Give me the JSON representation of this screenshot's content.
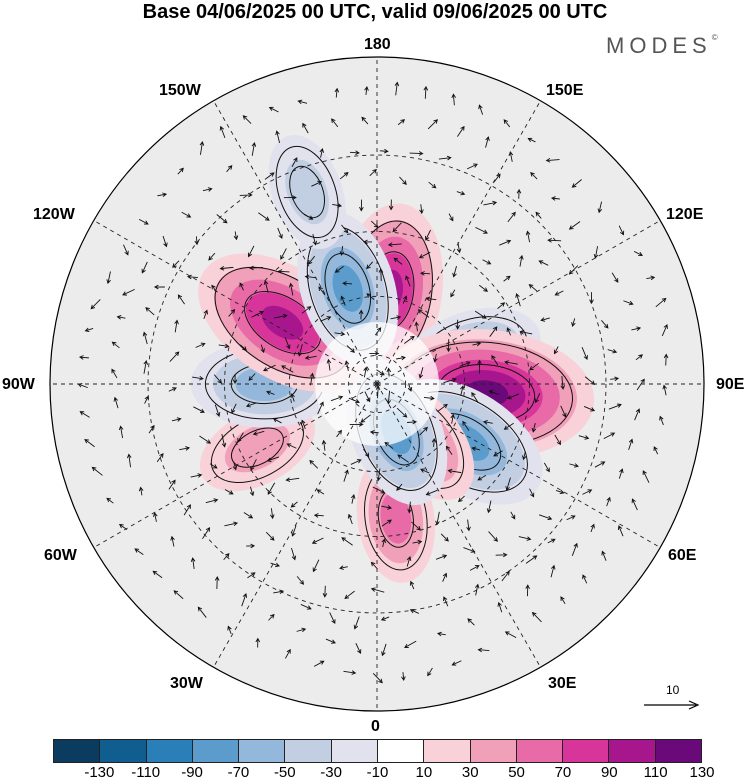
{
  "title": "Base 04/06/2025 00 UTC, valid 09/06/2025 00 UTC",
  "brand": "MODES",
  "brand_mark": "©",
  "longitude_labels": {
    "l180": "180",
    "l150e": "150E",
    "l120e": "120E",
    "l90e": "90E",
    "l60e": "60E",
    "l30e": "30E",
    "l0": "0",
    "l30w": "30W",
    "l60w": "60W",
    "l90w": "90W",
    "l120w": "120W",
    "l150w": "150W"
  },
  "colorbar": {
    "ticks": [
      "-130",
      "-110",
      "-90",
      "-70",
      "-50",
      "-30",
      "-10",
      "10",
      "30",
      "50",
      "70",
      "90",
      "110",
      "130"
    ],
    "colors": [
      "#0b3b5e",
      "#0f5e8f",
      "#2b7fb8",
      "#5b9ccc",
      "#93b8db",
      "#c2cfe3",
      "#e2e2ee",
      "#ffffff",
      "#f8d2d8",
      "#f0a0b8",
      "#e86aa6",
      "#d8359a",
      "#a8168e",
      "#6a0a7a"
    ]
  },
  "reference_vector": {
    "value": "10"
  },
  "map": {
    "projection": "north-polar-stereographic",
    "background_color": "#ececec",
    "anomalies": [
      {
        "lon": 172,
        "lat": 58,
        "level": 80
      },
      {
        "lon": 108,
        "lat": 56,
        "level": -50
      },
      {
        "lon": 85,
        "lat": 53,
        "level": 115
      },
      {
        "lon": 57,
        "lat": 54,
        "level": -75
      },
      {
        "lon": 38,
        "lat": 65,
        "level": 45
      },
      {
        "lon": 8,
        "lat": 45,
        "level": 40
      },
      {
        "lon": 22,
        "lat": 72,
        "level": -60
      },
      {
        "lon": -62,
        "lat": 45,
        "level": 35
      },
      {
        "lon": -90,
        "lat": 52,
        "level": -55
      },
      {
        "lon": -123,
        "lat": 52,
        "level": 90
      },
      {
        "lon": -163,
        "lat": 56,
        "level": -65
      },
      {
        "lon": -160,
        "lat": 26,
        "level": -30
      }
    ]
  }
}
